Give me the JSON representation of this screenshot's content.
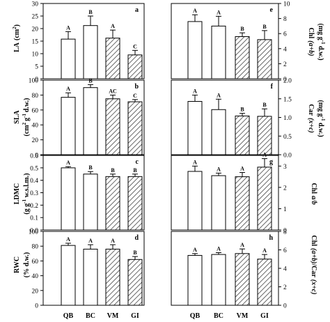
{
  "chart_data": [
    {
      "type": "bar",
      "panel": "a",
      "categories": [
        "QB",
        "BC",
        "VM",
        "GI"
      ],
      "values": [
        15.8,
        21.2,
        16.2,
        9.5
      ],
      "errors": [
        3.0,
        3.8,
        3.2,
        1.8
      ],
      "significance": [
        "A",
        "B",
        "A",
        "C"
      ],
      "ylabel": [
        "LA",
        "(cm",
        "2",
        ")"
      ],
      "ylim": [
        0,
        30
      ],
      "yticks": [
        "0",
        "5",
        "10",
        "15",
        "20",
        "25",
        "30"
      ],
      "hatched": [
        false,
        false,
        true,
        true
      ]
    },
    {
      "type": "bar",
      "panel": "e",
      "categories": [
        "QB",
        "BC",
        "VM",
        "GI"
      ],
      "values": [
        7.6,
        7.0,
        5.6,
        5.2
      ],
      "errors": [
        0.9,
        1.3,
        0.5,
        1.2
      ],
      "significance": [
        "A",
        "A",
        "B",
        "B"
      ],
      "ylabel": [
        "Chl",
        "(a+b)",
        "(mg g",
        "-1",
        " d.w.)"
      ],
      "ylim": [
        0,
        10
      ],
      "yticks": [
        "0",
        "2",
        "4",
        "6",
        "8",
        "10"
      ],
      "hatched": [
        false,
        false,
        true,
        true
      ]
    },
    {
      "type": "bar",
      "panel": "b",
      "categories": [
        "QB",
        "BC",
        "VM",
        "GI"
      ],
      "values": [
        77,
        90,
        75,
        71
      ],
      "errors": [
        6,
        4,
        5,
        3
      ],
      "significance": [
        "A",
        "B",
        "AC",
        "C"
      ],
      "ylabel": [
        "SLA",
        "(cm",
        "2",
        "g",
        "-1",
        "d.w.)"
      ],
      "ylim": [
        0,
        100
      ],
      "yticks": [
        "0",
        "20",
        "40",
        "60",
        "80",
        "100"
      ],
      "hatched": [
        false,
        false,
        true,
        true
      ]
    },
    {
      "type": "bar",
      "panel": "f",
      "categories": [
        "QB",
        "BC",
        "VM",
        "GI"
      ],
      "values": [
        1.43,
        1.21,
        1.04,
        1.03
      ],
      "errors": [
        0.17,
        0.28,
        0.07,
        0.2
      ],
      "significance": [
        "A",
        "A",
        "B",
        "B"
      ],
      "ylabel": [
        "Car",
        "(x+c)",
        "(mg g",
        "-1",
        " d.w.)"
      ],
      "ylim": [
        0,
        2
      ],
      "yticks": [
        "0.0",
        "0.5",
        "1.0",
        "1.5",
        "2.0"
      ],
      "hatched": [
        false,
        false,
        true,
        true
      ]
    },
    {
      "type": "bar",
      "panel": "c",
      "categories": [
        "QB",
        "BC",
        "VM",
        "GI"
      ],
      "values": [
        0.5,
        0.45,
        0.43,
        0.43
      ],
      "errors": [
        0.01,
        0.02,
        0.02,
        0.02
      ],
      "significance": [
        "A",
        "B",
        "B",
        "B"
      ],
      "ylabel": [
        "LDMC",
        "(g g",
        "-1",
        " w.s.l.m.)"
      ],
      "ylim": [
        0,
        0.6
      ],
      "yticks": [
        "0.0",
        "0.1",
        "0.2",
        "0.3",
        "0.4",
        "0.5",
        "0.6"
      ],
      "hatched": [
        false,
        false,
        true,
        true
      ]
    },
    {
      "type": "bar",
      "panel": "g",
      "categories": [
        "QB",
        "BC",
        "VM",
        "GI"
      ],
      "values": [
        2.75,
        2.55,
        2.5,
        2.95
      ],
      "errors": [
        0.25,
        0.12,
        0.2,
        0.4
      ],
      "significance": [
        "A",
        "A",
        "A",
        "A"
      ],
      "ylabel": [
        "Chl",
        "a/b"
      ],
      "ylim": [
        0,
        3.5
      ],
      "yticks": [
        "0",
        "1",
        "2",
        "3"
      ],
      "hatched": [
        false,
        false,
        true,
        true
      ]
    },
    {
      "type": "bar",
      "panel": "d",
      "categories": [
        "QB",
        "BC",
        "VM",
        "GI"
      ],
      "values": [
        81,
        76,
        76,
        62
      ],
      "errors": [
        3,
        6,
        6,
        4
      ],
      "significance": [
        "A",
        "A",
        "A",
        "B"
      ],
      "ylabel": [
        "RWC",
        "(% d.w.)"
      ],
      "ylim": [
        0,
        100
      ],
      "yticks": [
        "0",
        "20",
        "40",
        "60",
        "80",
        "100"
      ],
      "hatched": [
        false,
        false,
        true,
        true
      ]
    },
    {
      "type": "bar",
      "panel": "h",
      "categories": [
        "QB",
        "BC",
        "VM",
        "GI"
      ],
      "values": [
        5.4,
        5.5,
        5.6,
        5.0
      ],
      "errors": [
        0.2,
        0.2,
        0.5,
        0.5
      ],
      "significance": [
        "A",
        "A",
        "A",
        "A"
      ],
      "ylabel": [
        "Chl",
        "(a+b)",
        "/Car",
        "(x+c)"
      ],
      "ylim": [
        0,
        8
      ],
      "yticks": [
        "0",
        "2",
        "4",
        "6",
        "8"
      ],
      "hatched": [
        false,
        false,
        true,
        true
      ]
    }
  ],
  "x_categories": [
    "QB",
    "BC",
    "VM",
    "GI"
  ]
}
